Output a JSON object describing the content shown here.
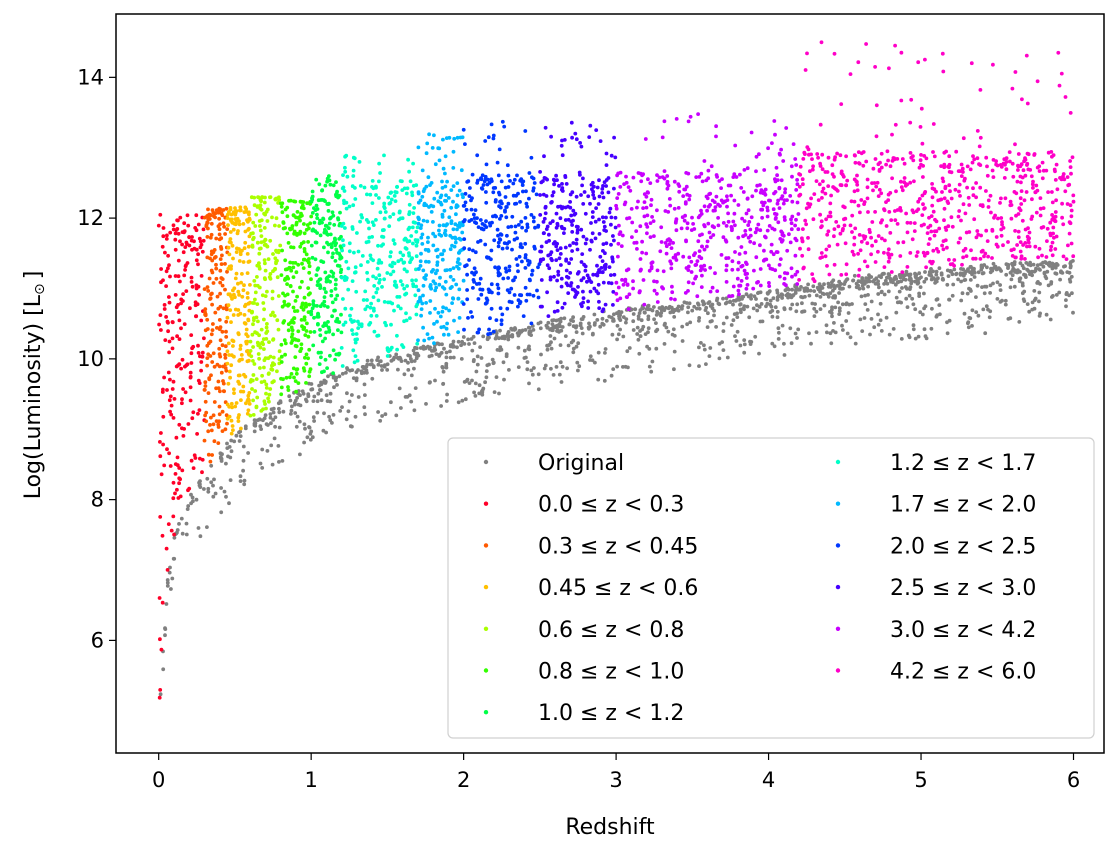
{
  "chart_data": {
    "type": "scatter",
    "title": "",
    "xlabel": "Redshift",
    "ylabel": "Log(Luminosity) [L",
    "ylabel_symbol": "⊙",
    "ylabel_close": "]",
    "xlim": [
      -0.28,
      6.2
    ],
    "ylim": [
      4.4,
      14.9
    ],
    "xticks": [
      0,
      1,
      2,
      3,
      4,
      5,
      6
    ],
    "yticks": [
      6,
      8,
      10,
      12,
      14
    ],
    "grid": false,
    "legend_position": "lower-right",
    "legend_columns": 2,
    "original": {
      "name": "Original",
      "color": "#808080",
      "description_of_shape": "lower envelope of all sources",
      "envelope": [
        [
          0,
          4.8
        ],
        [
          0.02,
          5.5
        ],
        [
          0.05,
          6.6
        ],
        [
          0.1,
          7.4
        ],
        [
          0.2,
          8.0
        ],
        [
          0.3,
          8.3
        ],
        [
          0.45,
          8.7
        ],
        [
          0.6,
          9.0
        ],
        [
          0.8,
          9.3
        ],
        [
          1.0,
          9.55
        ],
        [
          1.2,
          9.75
        ],
        [
          1.5,
          9.95
        ],
        [
          1.7,
          10.05
        ],
        [
          2.0,
          10.2
        ],
        [
          2.5,
          10.4
        ],
        [
          3.0,
          10.6
        ],
        [
          3.5,
          10.7
        ],
        [
          4.0,
          10.85
        ],
        [
          4.2,
          10.95
        ],
        [
          4.5,
          11.05
        ],
        [
          5.0,
          11.15
        ],
        [
          5.5,
          11.25
        ],
        [
          6.0,
          11.3
        ]
      ]
    },
    "series": [
      {
        "name": "0.0  ≤  z < 0.3",
        "color": "#ff0028",
        "zmin": 0.0,
        "zmax": 0.3,
        "ymax": 11.5
      },
      {
        "name": "0.3  ≤  z < 0.45",
        "color": "#ff5a00",
        "zmin": 0.3,
        "zmax": 0.45,
        "ymax": 11.9
      },
      {
        "name": "0.45  ≤  z < 0.6",
        "color": "#ffc000",
        "zmin": 0.45,
        "zmax": 0.6,
        "ymax": 11.9
      },
      {
        "name": "0.6  ≤  z < 0.8",
        "color": "#aaff00",
        "zmin": 0.6,
        "zmax": 0.8,
        "ymax": 12.3
      },
      {
        "name": "0.8  ≤  z < 1.0",
        "color": "#32ff00",
        "zmin": 0.8,
        "zmax": 1.0,
        "ymax": 12.2
      },
      {
        "name": "1.0  ≤  z < 1.2",
        "color": "#00ff46",
        "zmin": 1.0,
        "zmax": 1.2,
        "ymax": 12.6
      },
      {
        "name": "1.2  ≤  z < 1.7",
        "color": "#00ffc8",
        "zmin": 1.2,
        "zmax": 1.7,
        "ymax": 12.9
      },
      {
        "name": "1.7  ≤  z < 2.0",
        "color": "#00b9ff",
        "zmin": 1.7,
        "zmax": 2.0,
        "ymax": 13.2
      },
      {
        "name": "2.0  ≤  z < 2.5",
        "color": "#0037ff",
        "zmin": 2.0,
        "zmax": 2.5,
        "ymax": 13.4
      },
      {
        "name": "2.5  ≤  z < 3.0",
        "color": "#4600ff",
        "zmin": 2.5,
        "zmax": 3.0,
        "ymax": 13.4
      },
      {
        "name": "3.0  ≤  z < 4.2",
        "color": "#c800ff",
        "zmin": 3.0,
        "zmax": 4.2,
        "ymax": 13.5
      },
      {
        "name": "4.2  ≤  z < 6.0",
        "color": "#ff00c8",
        "zmin": 4.2,
        "zmax": 6.0,
        "ymax": 14.5
      }
    ]
  }
}
